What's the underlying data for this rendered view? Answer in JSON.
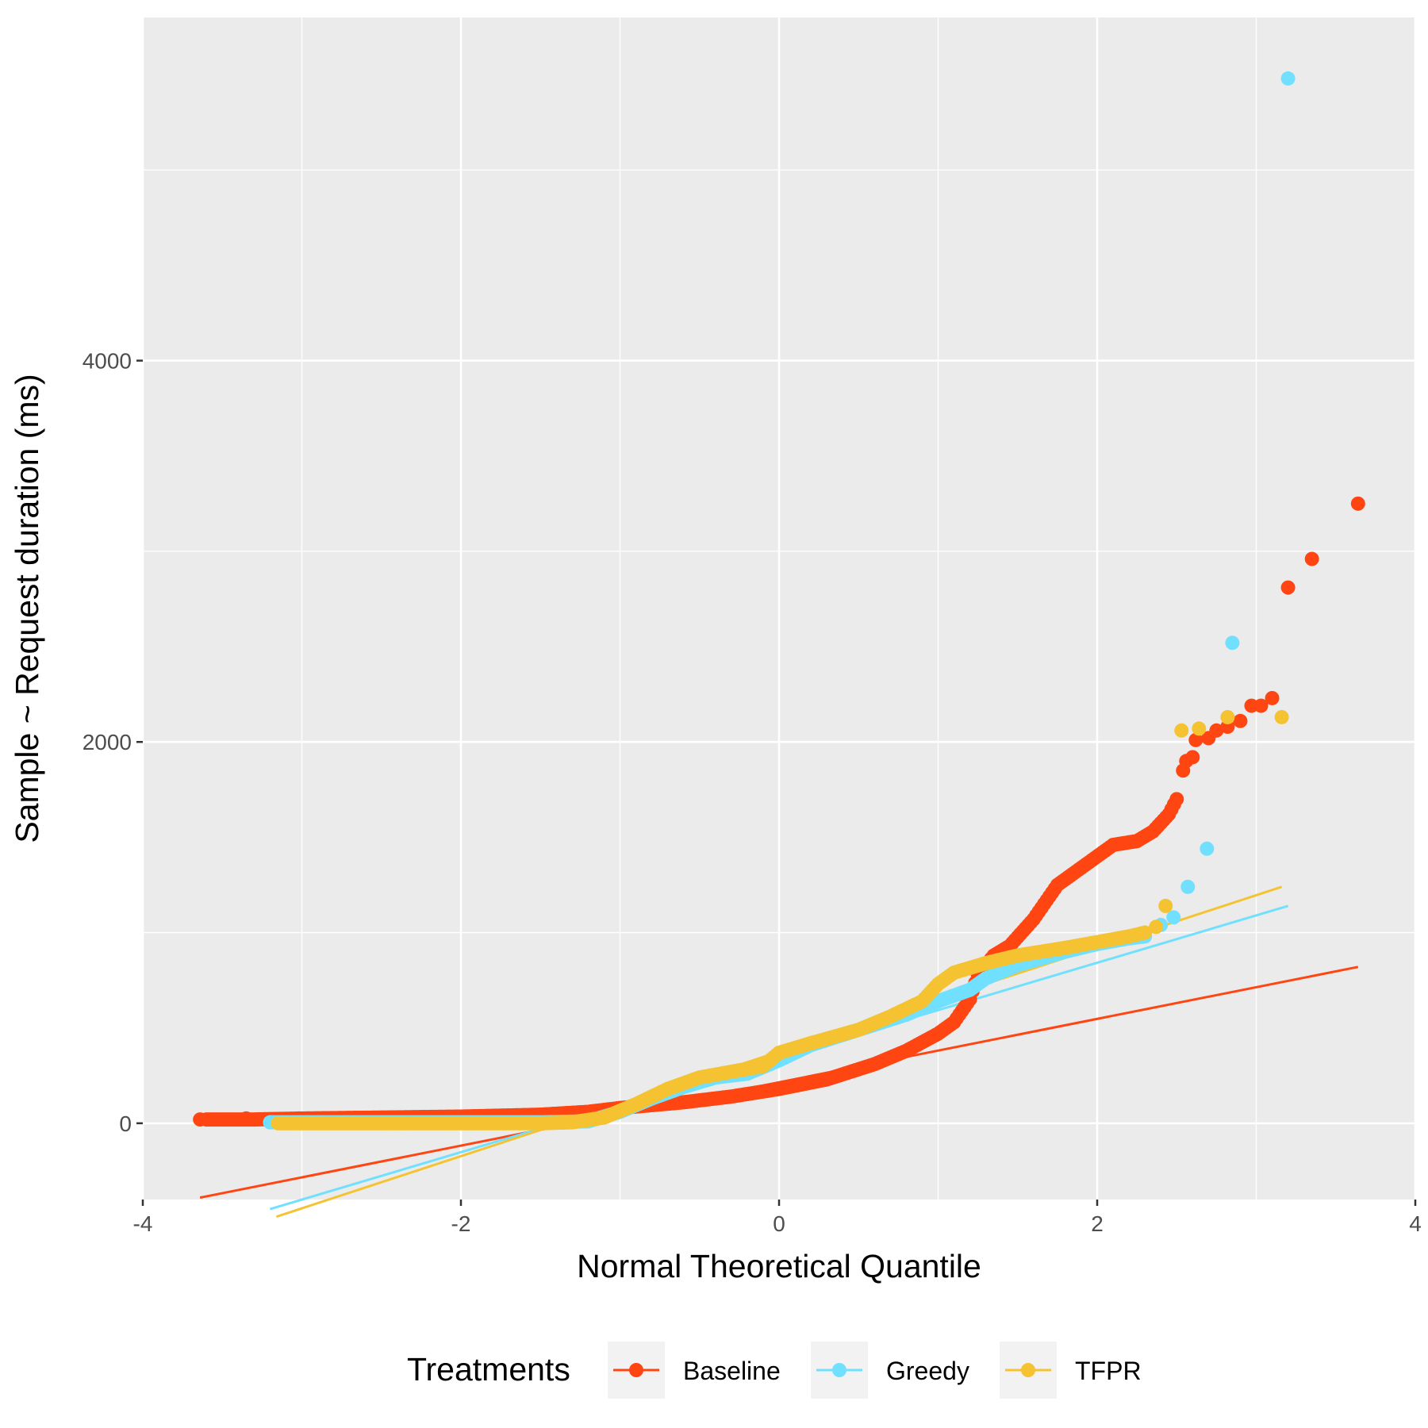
{
  "chart_data": {
    "type": "scatter",
    "title": "",
    "xlabel": "Normal Theoretical Quantile",
    "ylabel": "Sample ~ Request duration (ms)",
    "xlim": [
      -4,
      4
    ],
    "ylim": [
      -400,
      5800
    ],
    "x_ticks": [
      -4,
      -2,
      0,
      2,
      4
    ],
    "x_tick_labels": [
      "-4",
      "-2",
      "0",
      "2",
      "4"
    ],
    "y_ticks": [
      0,
      2000,
      4000
    ],
    "y_tick_labels": [
      "0",
      "2000",
      "4000"
    ],
    "grid": true,
    "legend": {
      "title": "Treatments",
      "position": "bottom",
      "items": [
        "Baseline",
        "Greedy",
        "TFPR"
      ]
    },
    "series": [
      {
        "name": "Baseline",
        "color": "#ff4511",
        "curve": [
          [
            -3.6,
            20
          ],
          [
            -3.3,
            20
          ],
          [
            -3.0,
            25
          ],
          [
            -2.5,
            30
          ],
          [
            -2.0,
            35
          ],
          [
            -1.5,
            45
          ],
          [
            -1.2,
            60
          ],
          [
            -1.0,
            80
          ],
          [
            -0.6,
            110
          ],
          [
            -0.3,
            140
          ],
          [
            0,
            180
          ],
          [
            0.3,
            230
          ],
          [
            0.6,
            310
          ],
          [
            0.8,
            380
          ],
          [
            1.0,
            470
          ],
          [
            1.1,
            530
          ],
          [
            1.2,
            650
          ],
          [
            1.25,
            780
          ],
          [
            1.35,
            880
          ],
          [
            1.45,
            930
          ],
          [
            1.6,
            1070
          ],
          [
            1.75,
            1250
          ],
          [
            1.9,
            1340
          ],
          [
            2.0,
            1400
          ],
          [
            2.1,
            1460
          ],
          [
            2.25,
            1480
          ],
          [
            2.35,
            1530
          ],
          [
            2.45,
            1620
          ],
          [
            2.5,
            1700
          ]
        ],
        "outliers": [
          [
            -3.64,
            20
          ],
          [
            -3.35,
            25
          ],
          [
            2.54,
            1850
          ],
          [
            2.56,
            1900
          ],
          [
            2.6,
            1920
          ],
          [
            2.62,
            2010
          ],
          [
            2.7,
            2020
          ],
          [
            2.75,
            2060
          ],
          [
            2.82,
            2080
          ],
          [
            2.9,
            2110
          ],
          [
            2.97,
            2190
          ],
          [
            3.03,
            2190
          ],
          [
            3.1,
            2230
          ],
          [
            3.2,
            2810
          ],
          [
            3.35,
            2960
          ],
          [
            3.64,
            3250
          ]
        ],
        "fit_line": [
          [
            -3.64,
            -390
          ],
          [
            3.64,
            820
          ]
        ]
      },
      {
        "name": "Greedy",
        "color": "#71e0ff",
        "curve": [
          [
            -3.2,
            5
          ],
          [
            -2.5,
            5
          ],
          [
            -1.5,
            5
          ],
          [
            -1.2,
            10
          ],
          [
            -1.0,
            60
          ],
          [
            -0.8,
            130
          ],
          [
            -0.6,
            190
          ],
          [
            -0.4,
            240
          ],
          [
            -0.2,
            260
          ],
          [
            0,
            330
          ],
          [
            0.2,
            410
          ],
          [
            0.5,
            490
          ],
          [
            0.8,
            570
          ],
          [
            1.0,
            640
          ],
          [
            1.2,
            700
          ],
          [
            1.3,
            760
          ],
          [
            1.5,
            830
          ],
          [
            1.8,
            900
          ],
          [
            2.0,
            940
          ],
          [
            2.2,
            970
          ],
          [
            2.3,
            980
          ]
        ],
        "outliers": [
          [
            2.4,
            1040
          ],
          [
            2.48,
            1080
          ],
          [
            2.57,
            1240
          ],
          [
            2.69,
            1440
          ],
          [
            2.85,
            2520
          ],
          [
            3.2,
            5480
          ]
        ],
        "fit_line": [
          [
            -3.2,
            -450
          ],
          [
            3.2,
            1140
          ]
        ]
      },
      {
        "name": "TFPR",
        "color": "#f5c332",
        "curve": [
          [
            -3.15,
            0
          ],
          [
            -2.5,
            0
          ],
          [
            -1.5,
            0
          ],
          [
            -1.3,
            5
          ],
          [
            -1.1,
            30
          ],
          [
            -0.9,
            100
          ],
          [
            -0.7,
            180
          ],
          [
            -0.5,
            240
          ],
          [
            -0.3,
            270
          ],
          [
            -0.1,
            300
          ],
          [
            0,
            370
          ],
          [
            0.2,
            420
          ],
          [
            0.5,
            490
          ],
          [
            0.7,
            560
          ],
          [
            0.9,
            640
          ],
          [
            1.0,
            730
          ],
          [
            1.1,
            790
          ],
          [
            1.3,
            840
          ],
          [
            1.5,
            880
          ],
          [
            1.8,
            920
          ],
          [
            2.0,
            950
          ],
          [
            2.2,
            980
          ],
          [
            2.3,
            1000
          ]
        ],
        "outliers": [
          [
            2.37,
            1030
          ],
          [
            2.43,
            1140
          ],
          [
            2.53,
            2060
          ],
          [
            2.64,
            2070
          ],
          [
            2.82,
            2130
          ],
          [
            3.16,
            2130
          ]
        ],
        "fit_line": [
          [
            -3.16,
            -490
          ],
          [
            3.16,
            1240
          ]
        ]
      }
    ]
  }
}
